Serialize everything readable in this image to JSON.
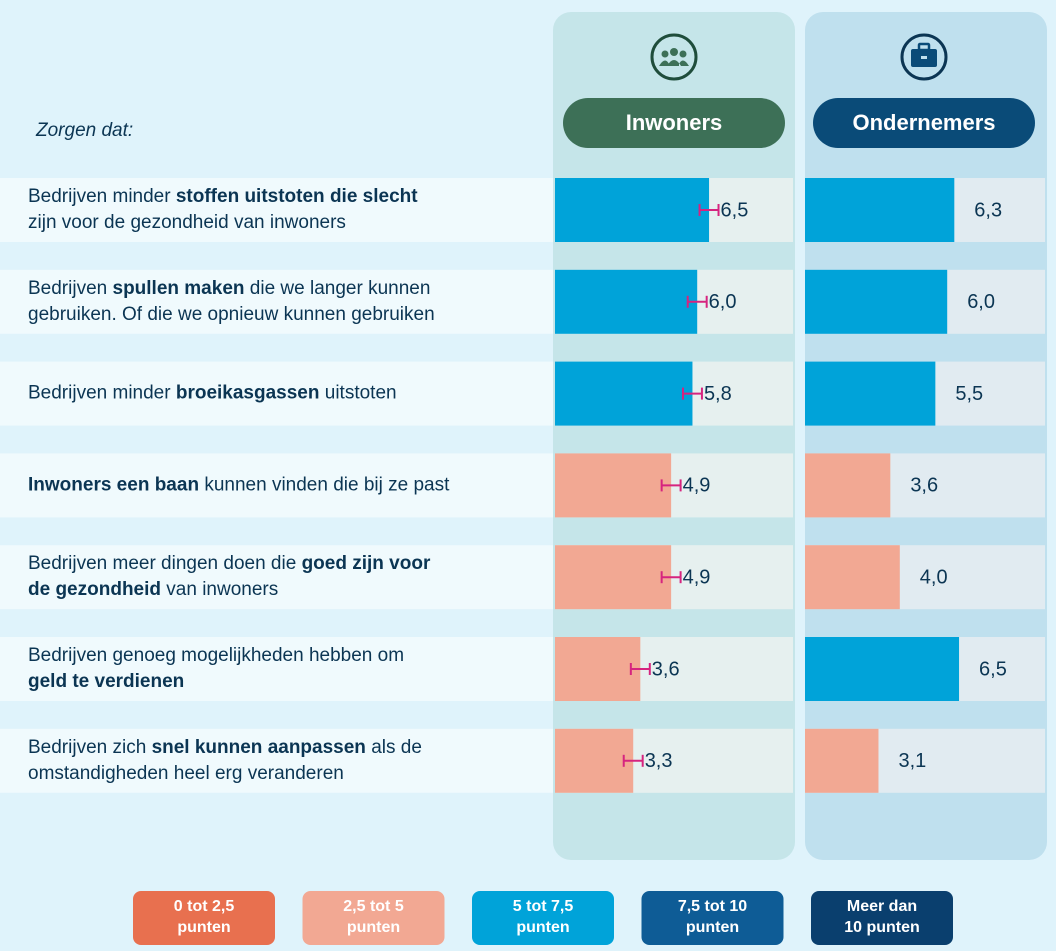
{
  "chart_data": {
    "type": "bar",
    "intro": "Zorgen dat:",
    "xlim": [
      0,
      10
    ],
    "error_color": "#d6247f",
    "categories": [
      [
        [
          {
            "text": "Bedrijven minder "
          },
          {
            "text": "stoffen uitstoten die slecht",
            "bold": true
          }
        ],
        [
          {
            "text": "zijn voor de gezondheid van inwoners"
          }
        ]
      ],
      [
        [
          {
            "text": "Bedrijven "
          },
          {
            "text": "spullen maken",
            "bold": true
          },
          {
            "text": " die we langer kunnen"
          }
        ],
        [
          {
            "text": "gebruiken. Of die we opnieuw kunnen gebruiken"
          }
        ]
      ],
      [
        [
          {
            "text": "Bedrijven minder "
          },
          {
            "text": "broeikasgassen",
            "bold": true
          },
          {
            "text": " uitstoten"
          }
        ]
      ],
      [
        [
          {
            "text": "Inwoners een baan",
            "bold": true
          },
          {
            "text": " kunnen vinden die bij ze past"
          }
        ]
      ],
      [
        [
          {
            "text": "Bedrijven meer dingen doen die "
          },
          {
            "text": "goed zijn voor",
            "bold": true
          }
        ],
        [
          {
            "text": "de gezondheid",
            "bold": true
          },
          {
            "text": " van inwoners"
          }
        ]
      ],
      [
        [
          {
            "text": "Bedrijven genoeg mogelijkheden hebben om"
          }
        ],
        [
          {
            "text": "geld te verdienen",
            "bold": true
          }
        ]
      ],
      [
        [
          {
            "text": "Bedrijven zich "
          },
          {
            "text": "snel kunnen aanpassen",
            "bold": true
          },
          {
            "text": " als de"
          }
        ],
        [
          {
            "text": "omstandigheden heel erg veranderen"
          }
        ]
      ]
    ],
    "series": [
      {
        "name": "Inwoners",
        "color": "#3d7057",
        "values": [
          6.5,
          6.0,
          5.8,
          4.9,
          4.9,
          3.6,
          3.3
        ],
        "value_labels": [
          "6,5",
          "6,0",
          "5,8",
          "4,9",
          "4,9",
          "3,6",
          "3,3"
        ],
        "errors": [
          0.4,
          0.4,
          0.4,
          0.4,
          0.4,
          0.4,
          0.4
        ],
        "colors": [
          "#00a3d9",
          "#00a3d9",
          "#00a3d9",
          "#f2a893",
          "#f2a893",
          "#f2a893",
          "#f2a893"
        ]
      },
      {
        "name": "Ondernemers",
        "color": "#0a4b78",
        "values": [
          6.3,
          6.0,
          5.5,
          3.6,
          4.0,
          6.5,
          3.1
        ],
        "value_labels": [
          "6,3",
          "6,0",
          "5,5",
          "3,6",
          "4,0",
          "6,5",
          "3,1"
        ],
        "colors": [
          "#00a3d9",
          "#00a3d9",
          "#00a3d9",
          "#f2a893",
          "#f2a893",
          "#00a3d9",
          "#f2a893"
        ]
      }
    ],
    "legend": [
      {
        "lines": [
          "0 tot 2,5",
          "punten"
        ],
        "color": "#e8704f"
      },
      {
        "lines": [
          "2,5 tot 5",
          "punten"
        ],
        "color": "#f2a893"
      },
      {
        "lines": [
          "5 tot 7,5",
          "punten"
        ],
        "color": "#00a3d9"
      },
      {
        "lines": [
          "7,5 tot 10",
          "punten"
        ],
        "color": "#0e5c96"
      },
      {
        "lines": [
          "Meer dan",
          "10 punten"
        ],
        "color": "#0a3f6e"
      }
    ]
  }
}
